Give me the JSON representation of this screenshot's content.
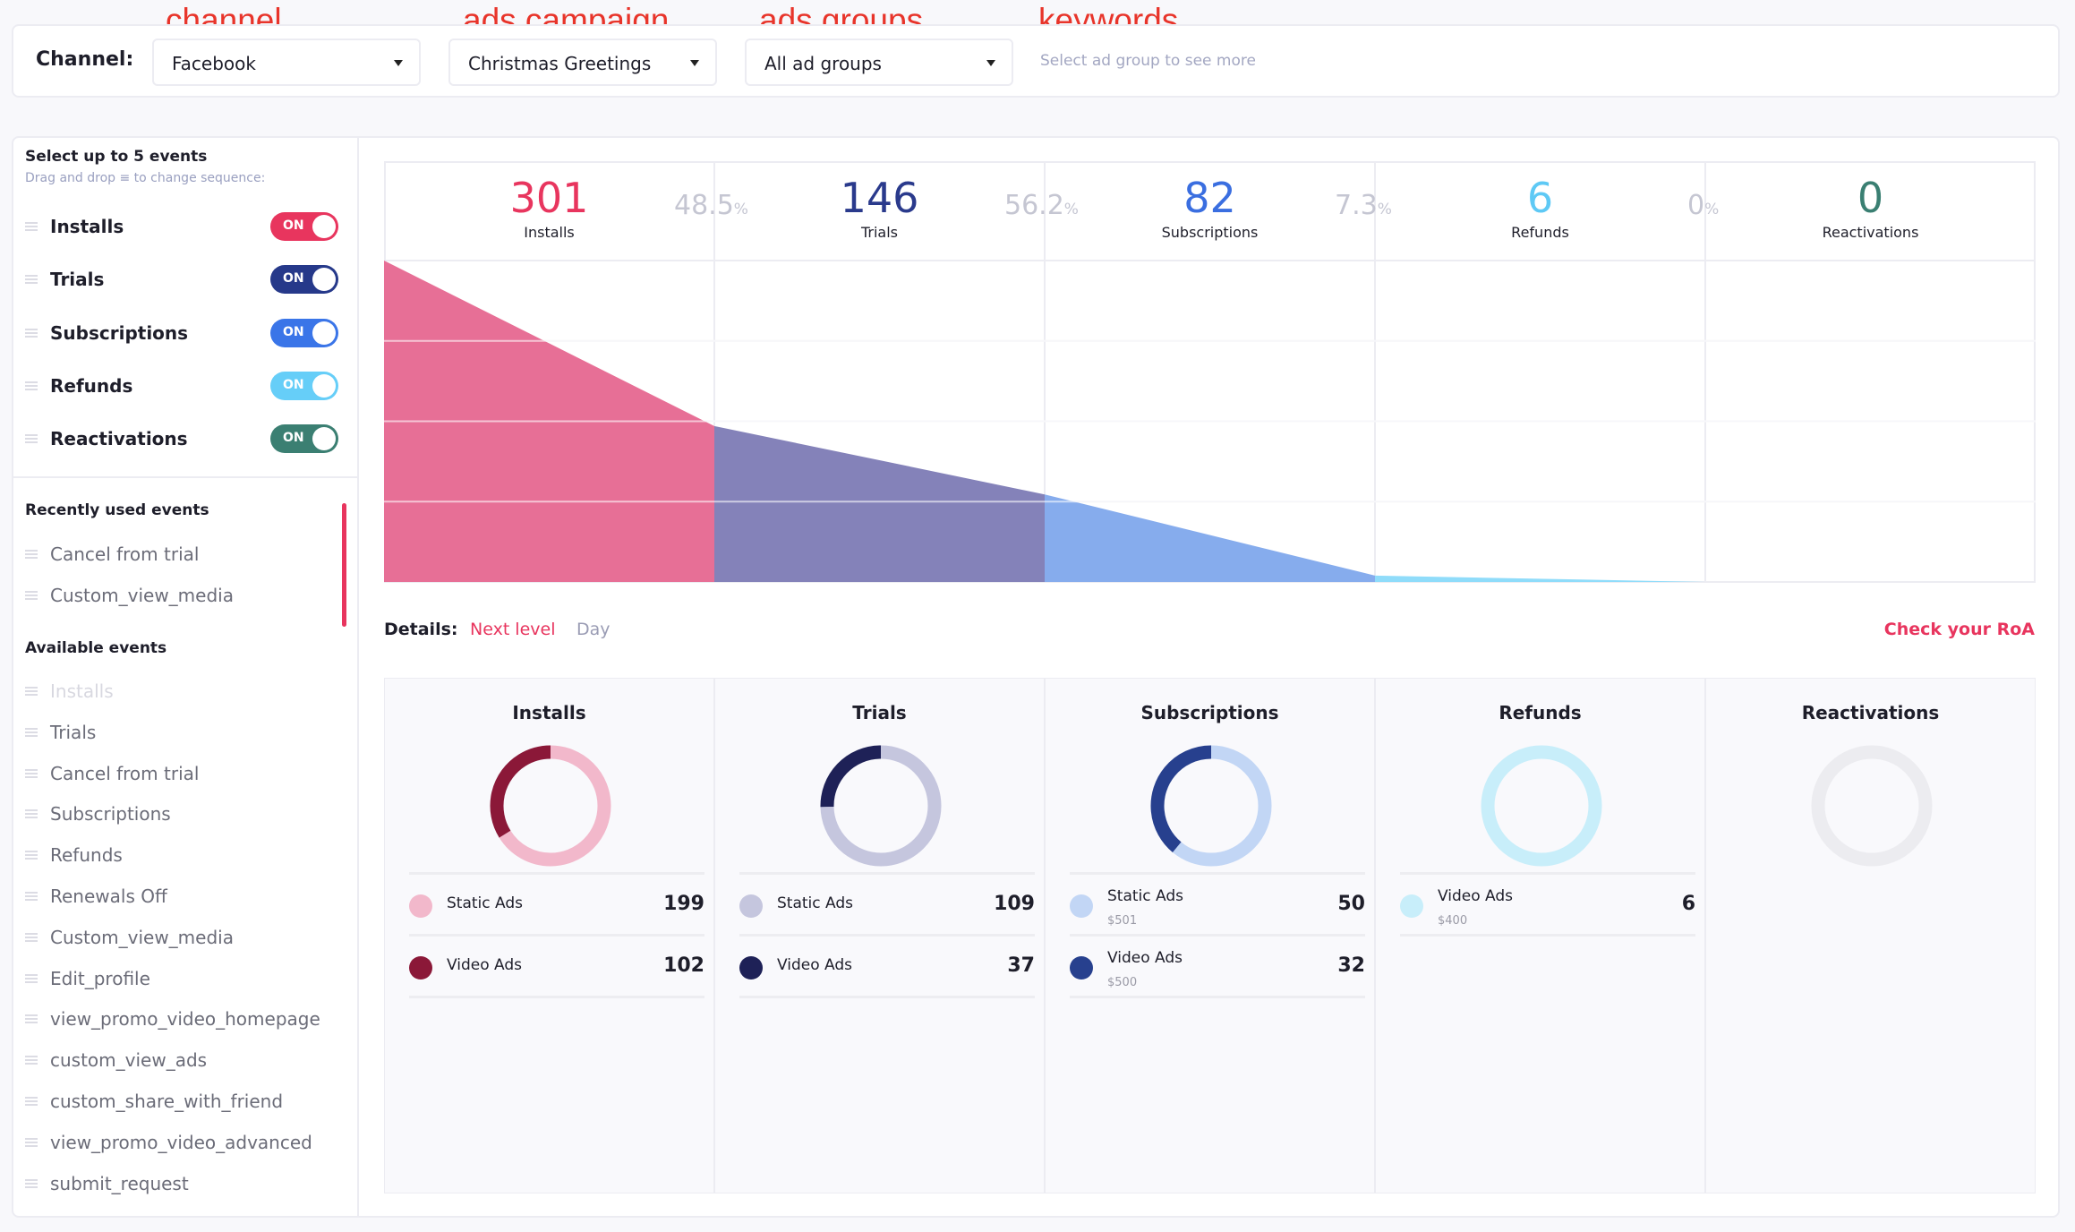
{
  "annotations": {
    "channel": "channel",
    "campaign": "ads campaign",
    "groups": "ads groups",
    "keywords": "keywords"
  },
  "filters": {
    "channel_label": "Channel:",
    "channel": "Facebook",
    "campaign": "Christmas Greetings",
    "ad_group": "All ad groups",
    "keywords_hint": "Select ad group to see more"
  },
  "sidebar": {
    "title": "Select up to 5 events",
    "subtitle": "Drag and drop ≡ to change sequence:",
    "selected": [
      {
        "label": "Installs",
        "toggle": "ON",
        "color": "#e8355e"
      },
      {
        "label": "Trials",
        "toggle": "ON",
        "color": "#26398a"
      },
      {
        "label": "Subscriptions",
        "toggle": "ON",
        "color": "#3a75e8"
      },
      {
        "label": "Refunds",
        "toggle": "ON",
        "color": "#66cef8"
      },
      {
        "label": "Reactivations",
        "toggle": "ON",
        "color": "#3b7f72"
      }
    ],
    "recent_title": "Recently used events",
    "recent": [
      "Cancel from trial",
      "Custom_view_media"
    ],
    "available_title": "Available events",
    "available": [
      "Installs",
      "Trials",
      "Cancel from trial",
      "Subscriptions",
      "Refunds",
      "Renewals Off",
      "Custom_view_media",
      "Edit_profile",
      "view_promo_video_homepage",
      "custom_view_ads",
      "custom_share_with_friend",
      "view_promo_video_advanced",
      "submit_request"
    ],
    "available_disabled": [
      "Installs"
    ]
  },
  "funnel": {
    "steps": [
      {
        "label": "Installs",
        "value": "301",
        "color": "#e8355e",
        "fill": "#e76f96"
      },
      {
        "label": "Trials",
        "value": "146",
        "color": "#2a3a8c",
        "fill": "#8482b9"
      },
      {
        "label": "Subscriptions",
        "value": "82",
        "color": "#3a6ee0",
        "fill": "#86aced"
      },
      {
        "label": "Refunds",
        "value": "6",
        "color": "#5ec9f5",
        "fill": "#8fdcfa"
      },
      {
        "label": "Reactivations",
        "value": "0",
        "color": "#3a7f72",
        "fill": "#8fd0c0"
      }
    ],
    "conversions": [
      {
        "v": "48.5",
        "u": "%"
      },
      {
        "v": "56.2",
        "u": "%"
      },
      {
        "v": "7.3",
        "u": "%"
      },
      {
        "v": "0",
        "u": "%"
      }
    ]
  },
  "details": {
    "label": "Details:",
    "next_level": "Next level",
    "day": "Day",
    "roa": "Check your RoA"
  },
  "breakdown": [
    {
      "title": "Installs",
      "items": [
        {
          "name": "Static Ads",
          "value": "199",
          "color": "#f2b8cb"
        },
        {
          "name": "Video Ads",
          "value": "102",
          "color": "#8b1838"
        }
      ]
    },
    {
      "title": "Trials",
      "items": [
        {
          "name": "Static Ads",
          "value": "109",
          "color": "#c5c6de"
        },
        {
          "name": "Video Ads",
          "value": "37",
          "color": "#1e2157"
        }
      ]
    },
    {
      "title": "Subscriptions",
      "items": [
        {
          "name": "Static Ads",
          "sub": "$501",
          "value": "50",
          "color": "#c2d6f5"
        },
        {
          "name": "Video Ads",
          "sub": "$500",
          "value": "32",
          "color": "#27408e"
        }
      ]
    },
    {
      "title": "Refunds",
      "items": [
        {
          "name": "Video Ads",
          "sub": "$400",
          "value": "6",
          "color": "#c8eefa"
        }
      ]
    },
    {
      "title": "Reactivations",
      "items": [],
      "empty_color": "#ececf0"
    }
  ]
}
